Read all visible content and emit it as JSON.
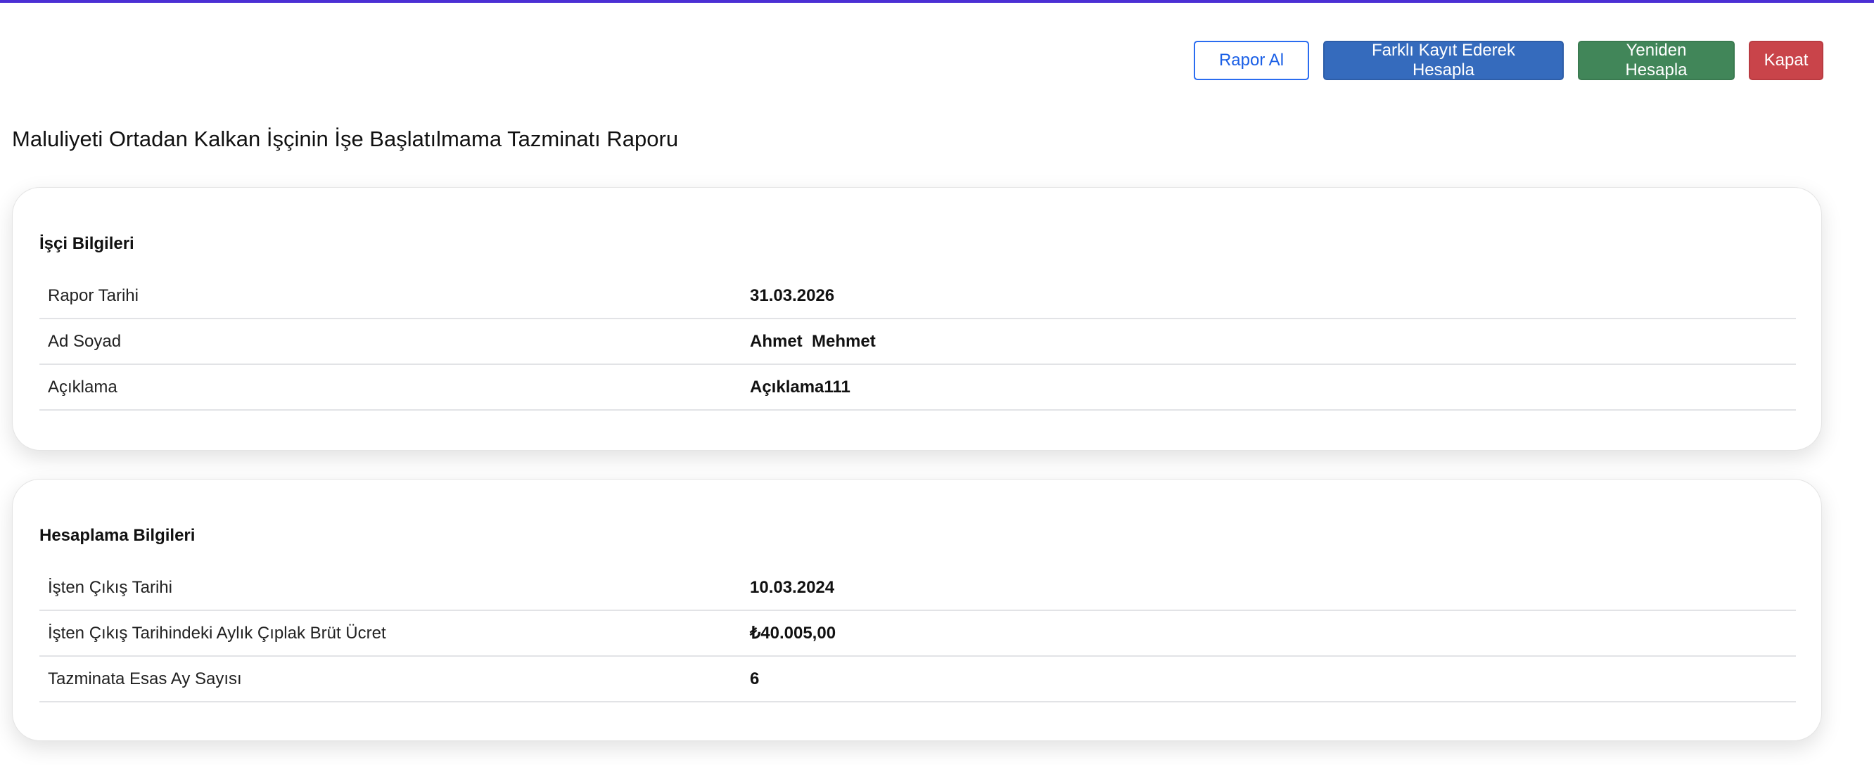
{
  "toolbar": {
    "report_label": "Rapor Al",
    "save_as_label": "Farklı Kayıt Ederek Hesapla",
    "recalculate_label": "Yeniden Hesapla",
    "close_label": "Kapat"
  },
  "page_title": "Maluliyeti Ortadan Kalkan İşçinin İşe Başlatılmama Tazminatı Raporu",
  "worker_section": {
    "title": "İşçi Bilgileri",
    "rows": [
      {
        "label": "Rapor Tarihi",
        "value": "31.03.2026"
      },
      {
        "label": "Ad Soyad",
        "value": "Ahmet  Mehmet"
      },
      {
        "label": "Açıklama",
        "value": "Açıklama111"
      }
    ]
  },
  "calc_section": {
    "title": "Hesaplama Bilgileri",
    "rows": [
      {
        "label": "İşten Çıkış Tarihi",
        "value": "10.03.2024"
      },
      {
        "label": "İşten Çıkış Tarihindeki Aylık Çıplak Brüt Ücret",
        "value": "₺40.005,00"
      },
      {
        "label": "Tazminata Esas Ay Sayısı",
        "value": "6"
      }
    ]
  },
  "colors": {
    "accent_top_border": "#4b2fd4",
    "primary": "#356bbd",
    "success": "#418659",
    "danger": "#c9444a"
  }
}
